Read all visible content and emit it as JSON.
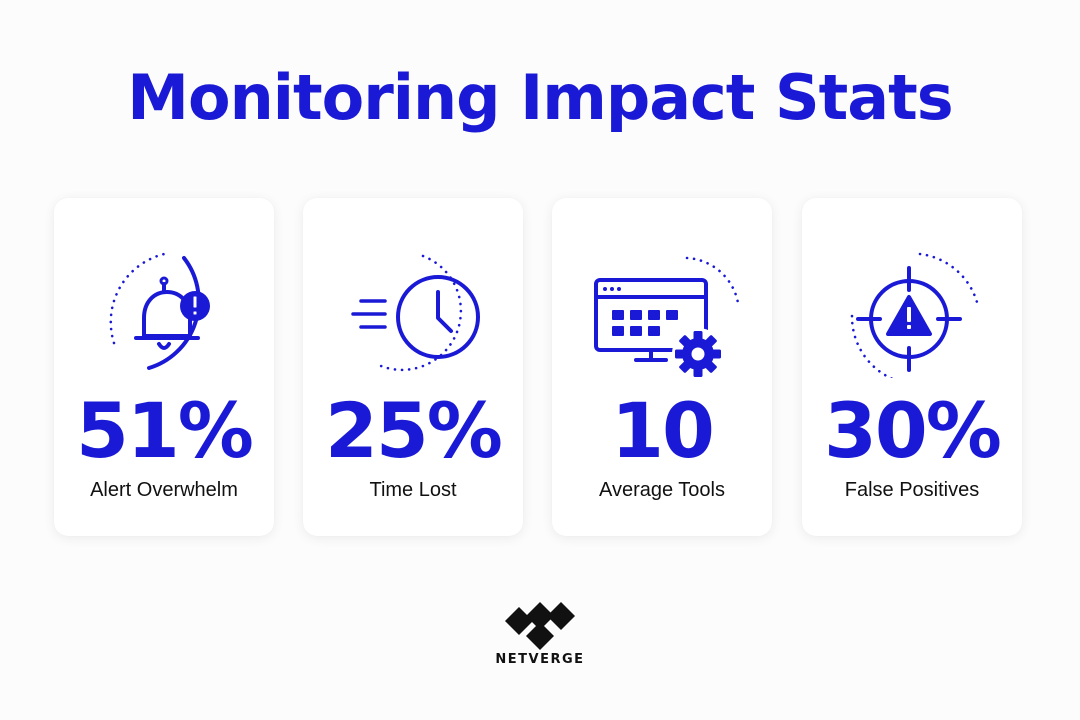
{
  "colors": {
    "accent": "#1a1ad6",
    "text": "#111111",
    "background": "#fcfcfc",
    "card": "#ffffff"
  },
  "title": "Monitoring Impact Stats",
  "stats": [
    {
      "value": "51%",
      "label": "Alert Overwhelm",
      "icon": "bell-alert-icon"
    },
    {
      "value": "25%",
      "label": "Time Lost",
      "icon": "fast-clock-icon"
    },
    {
      "value": "10",
      "label": "Average Tools",
      "icon": "monitor-gear-icon"
    },
    {
      "value": "30%",
      "label": "False Positives",
      "icon": "target-warning-icon"
    }
  ],
  "logo": {
    "text": "NETVERGE",
    "icon": "netverge-logo-icon"
  }
}
